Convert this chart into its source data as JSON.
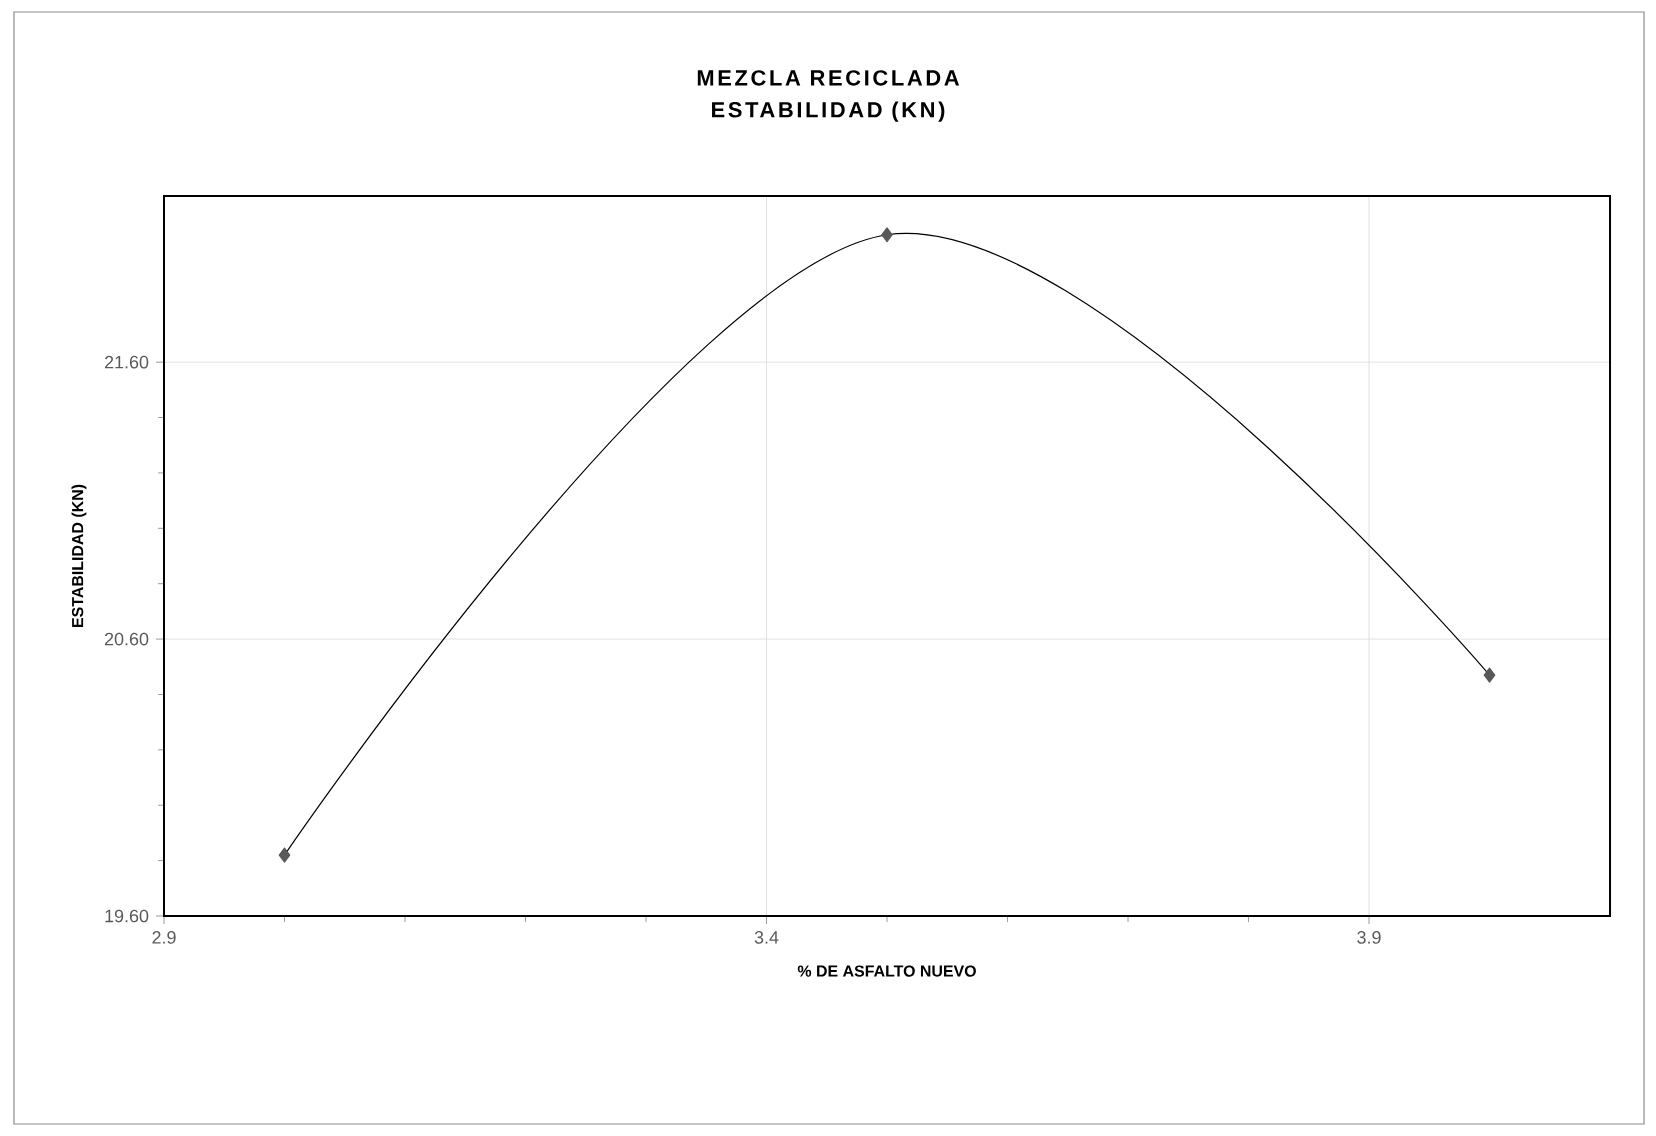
{
  "chart_data": {
    "type": "line",
    "title": "MEZCLA RECICLADA",
    "subtitle": "ESTABILIDAD (KN)",
    "xlabel": "% DE ASFALTO NUEVO",
    "ylabel": "ESTABILIDAD (KN)",
    "x": [
      3.0,
      3.5,
      4.0
    ],
    "series": [
      {
        "color": "#595959",
        "values": [
          19.82,
          22.06,
          20.47
        ]
      }
    ],
    "xlim": [
      2.9,
      4.1
    ],
    "xticks": [
      2.9,
      3.4,
      3.9
    ],
    "ylim": [
      19.6,
      22.2
    ],
    "yticks": [
      {
        "value": 19.6,
        "label": "19.60"
      },
      {
        "value": 20.6,
        "label": "20.60"
      },
      {
        "value": 21.6,
        "label": "21.60"
      }
    ],
    "grid": true,
    "marker": "diamond",
    "line_style": "solid"
  }
}
